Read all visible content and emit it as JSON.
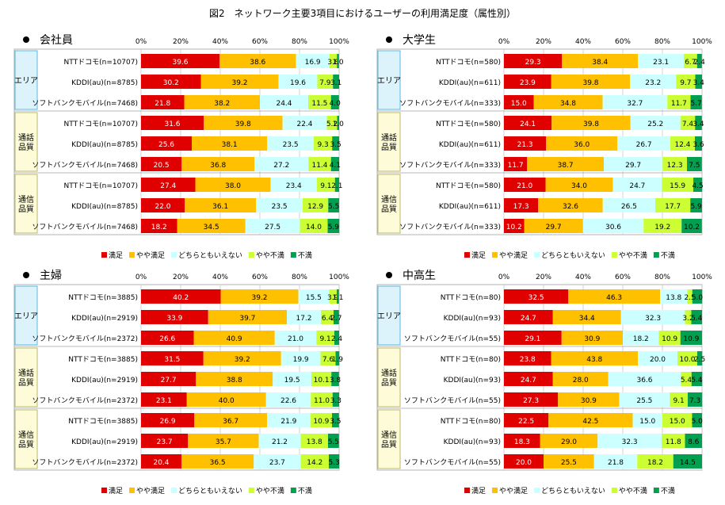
{
  "figure_title": "図2　ネットワーク主要3項目におけるユーザーの利用満足度（属性別）",
  "chart_data": {
    "type": "bar",
    "stacked": "percent",
    "axis": {
      "ticks": [
        "0%",
        "20%",
        "40%",
        "60%",
        "80%",
        "100%"
      ],
      "range": [
        0,
        100
      ],
      "grid": true
    },
    "legend": {
      "placement": "bottom",
      "entries": [
        "満足",
        "やや満足",
        "どちらともいえない",
        "やや不満",
        "不満"
      ]
    },
    "colors": [
      "#e00000",
      "#ffc000",
      "#ccffff",
      "#ccff33",
      "#00a050"
    ],
    "panels": [
      {
        "title": "会社員",
        "groups": [
          {
            "label": "エリア",
            "rows": [
              {
                "label": "NTTドコモ(n=10707)",
                "values": [
                  39.6,
                  38.6,
                  16.9,
                  3.8,
                  1.0
                ]
              },
              {
                "label": "KDDI(au)(n=8785)",
                "values": [
                  30.2,
                  39.2,
                  19.6,
                  7.9,
                  3.1
                ]
              },
              {
                "label": "ソフトバンクモバイル(n=7468)",
                "values": [
                  21.8,
                  38.2,
                  24.4,
                  11.5,
                  4.0
                ]
              }
            ]
          },
          {
            "label": "通話品質",
            "rows": [
              {
                "label": "NTTドコモ(n=10707)",
                "values": [
                  31.6,
                  39.8,
                  22.4,
                  5.2,
                  1.0
                ]
              },
              {
                "label": "KDDI(au)(n=8785)",
                "values": [
                  25.6,
                  38.1,
                  23.5,
                  9.3,
                  3.5
                ]
              },
              {
                "label": "ソフトバンクモバイル(n=7468)",
                "values": [
                  20.5,
                  36.8,
                  27.2,
                  11.4,
                  4.1
                ]
              }
            ]
          },
          {
            "label": "通信品質",
            "rows": [
              {
                "label": "NTTドコモ(n=10707)",
                "values": [
                  27.4,
                  38.0,
                  23.4,
                  9.1,
                  2.1
                ]
              },
              {
                "label": "KDDI(au)(n=8785)",
                "values": [
                  22.0,
                  36.1,
                  23.5,
                  12.9,
                  5.5
                ]
              },
              {
                "label": "ソフトバンクモバイル(n=7468)",
                "values": [
                  18.2,
                  34.5,
                  27.5,
                  14.0,
                  5.9
                ]
              }
            ]
          }
        ]
      },
      {
        "title": "大学生",
        "groups": [
          {
            "label": "エリア",
            "rows": [
              {
                "label": "NTTドコモ(n=580)",
                "values": [
                  29.3,
                  38.4,
                  23.1,
                  6.7,
                  2.4
                ]
              },
              {
                "label": "KDDI(au)(n=611)",
                "values": [
                  23.9,
                  39.8,
                  23.2,
                  9.7,
                  3.4
                ]
              },
              {
                "label": "ソフトバンクモバイル(n=333)",
                "values": [
                  15.0,
                  34.8,
                  32.7,
                  11.7,
                  5.7
                ]
              }
            ]
          },
          {
            "label": "通話品質",
            "rows": [
              {
                "label": "NTTドコモ(n=580)",
                "values": [
                  24.1,
                  39.8,
                  25.2,
                  7.4,
                  3.4
                ]
              },
              {
                "label": "KDDI(au)(n=611)",
                "values": [
                  21.3,
                  36.0,
                  26.7,
                  12.4,
                  3.6
                ]
              },
              {
                "label": "ソフトバンクモバイル(n=333)",
                "values": [
                  11.7,
                  38.7,
                  29.7,
                  12.3,
                  7.5
                ]
              }
            ]
          },
          {
            "label": "通信品質",
            "rows": [
              {
                "label": "NTTドコモ(n=580)",
                "values": [
                  21.0,
                  34.0,
                  24.7,
                  15.9,
                  4.5
                ]
              },
              {
                "label": "KDDI(au)(n=611)",
                "values": [
                  17.3,
                  32.6,
                  26.5,
                  17.7,
                  5.9
                ]
              },
              {
                "label": "ソフトバンクモバイル(n=333)",
                "values": [
                  10.2,
                  29.7,
                  30.6,
                  19.2,
                  10.2
                ]
              }
            ]
          }
        ]
      },
      {
        "title": "主婦",
        "groups": [
          {
            "label": "エリア",
            "rows": [
              {
                "label": "NTTドコモ(n=3885)",
                "values": [
                  40.2,
                  39.2,
                  15.5,
                  3.9,
                  1.1
                ]
              },
              {
                "label": "KDDI(au)(n=2919)",
                "values": [
                  33.9,
                  39.7,
                  17.2,
                  6.4,
                  2.7
                ]
              },
              {
                "label": "ソフトバンクモバイル(n=2372)",
                "values": [
                  26.6,
                  40.9,
                  21.0,
                  9.1,
                  2.4
                ]
              }
            ]
          },
          {
            "label": "通話品質",
            "rows": [
              {
                "label": "NTTドコモ(n=3885)",
                "values": [
                  31.5,
                  39.2,
                  19.9,
                  7.6,
                  1.9
                ]
              },
              {
                "label": "KDDI(au)(n=2919)",
                "values": [
                  27.7,
                  38.8,
                  19.5,
                  10.1,
                  3.8
                ]
              },
              {
                "label": "ソフトバンクモバイル(n=2372)",
                "values": [
                  23.1,
                  40.0,
                  22.6,
                  11.0,
                  3.3
                ]
              }
            ]
          },
          {
            "label": "通信品質",
            "rows": [
              {
                "label": "NTTドコモ(n=3885)",
                "values": [
                  26.9,
                  36.7,
                  21.9,
                  10.9,
                  3.5
                ]
              },
              {
                "label": "KDDI(au)(n=2919)",
                "values": [
                  23.7,
                  35.7,
                  21.2,
                  13.8,
                  5.5
                ]
              },
              {
                "label": "ソフトバンクモバイル(n=2372)",
                "values": [
                  20.4,
                  36.5,
                  23.7,
                  14.2,
                  5.3
                ]
              }
            ]
          }
        ]
      },
      {
        "title": "中高生",
        "groups": [
          {
            "label": "エリア",
            "rows": [
              {
                "label": "NTTドコモ(n=80)",
                "values": [
                  32.5,
                  46.3,
                  13.8,
                  2.5,
                  5.0
                ]
              },
              {
                "label": "KDDI(au)(n=93)",
                "values": [
                  24.7,
                  34.4,
                  32.3,
                  3.2,
                  5.4
                ]
              },
              {
                "label": "ソフトバンクモバイル(n=55)",
                "values": [
                  29.1,
                  30.9,
                  18.2,
                  10.9,
                  10.9
                ]
              }
            ]
          },
          {
            "label": "通話品質",
            "rows": [
              {
                "label": "NTTドコモ(n=80)",
                "values": [
                  23.8,
                  43.8,
                  20.0,
                  10.0,
                  2.5
                ]
              },
              {
                "label": "KDDI(au)(n=93)",
                "values": [
                  24.7,
                  28.0,
                  36.6,
                  5.4,
                  5.4
                ]
              },
              {
                "label": "ソフトバンクモバイル(n=55)",
                "values": [
                  27.3,
                  30.9,
                  25.5,
                  9.1,
                  7.3
                ]
              }
            ]
          },
          {
            "label": "通信品質",
            "rows": [
              {
                "label": "NTTドコモ(n=80)",
                "values": [
                  22.5,
                  42.5,
                  15.0,
                  15.0,
                  5.0
                ]
              },
              {
                "label": "KDDI(au)(n=93)",
                "values": [
                  18.3,
                  29.0,
                  32.3,
                  11.8,
                  8.6
                ]
              },
              {
                "label": "ソフトバンクモバイル(n=55)",
                "values": [
                  20.0,
                  25.5,
                  21.8,
                  18.2,
                  14.5
                ]
              }
            ]
          }
        ]
      }
    ]
  }
}
